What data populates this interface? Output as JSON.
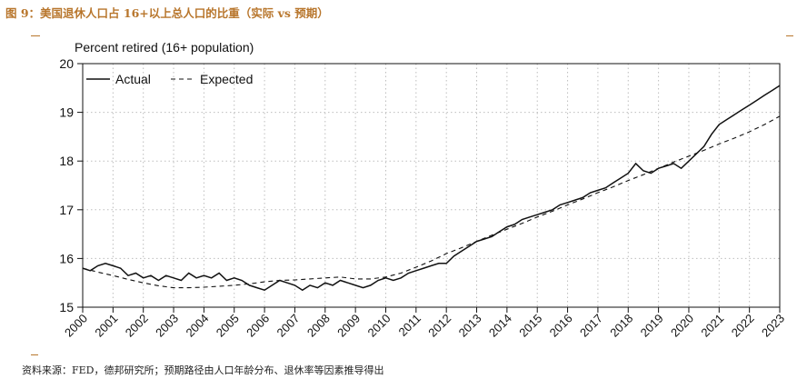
{
  "figure_title": "图 9：美国退休人口占 16+以上总人口的比重（实际 vs 预期）",
  "source": "资料来源：FED，德邦研究所；预期路径由人口年龄分布、退休率等因素推导得出",
  "colors": {
    "title": "#b8762c",
    "line": "#111111",
    "grid": "#bdbdbd"
  },
  "chart_data": {
    "type": "line",
    "title": "Percent retired (16+ population)",
    "xlabel": "",
    "ylabel": "",
    "xlim": [
      2000,
      2023
    ],
    "ylim": [
      15,
      20
    ],
    "yticks": [
      15,
      16,
      17,
      18,
      19,
      20
    ],
    "xticks": [
      "2000",
      "2001",
      "2002",
      "2003",
      "2004",
      "2005",
      "2006",
      "2007",
      "2008",
      "2009",
      "2010",
      "2011",
      "2012",
      "2013",
      "2014",
      "2015",
      "2016",
      "2017",
      "2018",
      "2019",
      "2020",
      "2021",
      "2022",
      "2023"
    ],
    "grid": true,
    "legend_position": "top-left",
    "series": [
      {
        "name": "Actual",
        "style": "solid",
        "x": [
          2000.0,
          2000.25,
          2000.5,
          2000.75,
          2001.0,
          2001.25,
          2001.5,
          2001.75,
          2002.0,
          2002.25,
          2002.5,
          2002.75,
          2003.0,
          2003.25,
          2003.5,
          2003.75,
          2004.0,
          2004.25,
          2004.5,
          2004.75,
          2005.0,
          2005.25,
          2005.5,
          2005.75,
          2006.0,
          2006.25,
          2006.5,
          2006.75,
          2007.0,
          2007.25,
          2007.5,
          2007.75,
          2008.0,
          2008.25,
          2008.5,
          2008.75,
          2009.0,
          2009.25,
          2009.5,
          2009.75,
          2010.0,
          2010.25,
          2010.5,
          2010.75,
          2011.0,
          2011.25,
          2011.5,
          2011.75,
          2012.0,
          2012.25,
          2012.5,
          2012.75,
          2013.0,
          2013.25,
          2013.5,
          2013.75,
          2014.0,
          2014.25,
          2014.5,
          2014.75,
          2015.0,
          2015.25,
          2015.5,
          2015.75,
          2016.0,
          2016.25,
          2016.5,
          2016.75,
          2017.0,
          2017.25,
          2017.5,
          2017.75,
          2018.0,
          2018.25,
          2018.5,
          2018.75,
          2019.0,
          2019.25,
          2019.5,
          2019.75,
          2020.0,
          2020.25,
          2020.5,
          2020.75,
          2021.0,
          2021.25,
          2021.5,
          2021.75,
          2022.0,
          2022.25,
          2022.5,
          2022.75,
          2023.0
        ],
        "y": [
          15.8,
          15.75,
          15.85,
          15.9,
          15.85,
          15.8,
          15.65,
          15.7,
          15.6,
          15.65,
          15.55,
          15.65,
          15.6,
          15.55,
          15.7,
          15.6,
          15.65,
          15.6,
          15.7,
          15.55,
          15.6,
          15.55,
          15.45,
          15.4,
          15.35,
          15.45,
          15.55,
          15.5,
          15.45,
          15.35,
          15.45,
          15.4,
          15.5,
          15.45,
          15.55,
          15.5,
          15.45,
          15.4,
          15.45,
          15.55,
          15.6,
          15.55,
          15.6,
          15.7,
          15.75,
          15.8,
          15.85,
          15.9,
          15.9,
          16.05,
          16.15,
          16.25,
          16.35,
          16.4,
          16.45,
          16.55,
          16.65,
          16.7,
          16.8,
          16.85,
          16.9,
          16.95,
          17.0,
          17.1,
          17.15,
          17.2,
          17.25,
          17.35,
          17.4,
          17.45,
          17.55,
          17.65,
          17.75,
          17.95,
          17.8,
          17.75,
          17.85,
          17.9,
          17.95,
          17.85,
          18.0,
          18.15,
          18.3,
          18.55,
          18.75,
          18.85,
          18.95,
          19.05,
          19.15,
          19.25,
          19.35,
          19.45,
          19.55
        ]
      },
      {
        "name": "Expected",
        "style": "dashed",
        "x": [
          2000.0,
          2000.5,
          2001.0,
          2001.5,
          2002.0,
          2002.5,
          2003.0,
          2003.5,
          2004.0,
          2004.5,
          2005.0,
          2005.5,
          2006.0,
          2006.5,
          2007.0,
          2007.5,
          2008.0,
          2008.5,
          2009.0,
          2009.5,
          2010.0,
          2010.5,
          2011.0,
          2011.5,
          2012.0,
          2012.5,
          2013.0,
          2013.5,
          2014.0,
          2014.5,
          2015.0,
          2015.5,
          2016.0,
          2016.5,
          2017.0,
          2017.5,
          2018.0,
          2018.5,
          2019.0,
          2019.5,
          2020.0,
          2020.5,
          2021.0,
          2021.5,
          2022.0,
          2022.5,
          2023.0
        ],
        "y": [
          15.8,
          15.72,
          15.65,
          15.57,
          15.5,
          15.44,
          15.4,
          15.4,
          15.41,
          15.43,
          15.45,
          15.48,
          15.52,
          15.55,
          15.56,
          15.58,
          15.6,
          15.62,
          15.58,
          15.58,
          15.62,
          15.7,
          15.82,
          15.95,
          16.1,
          16.22,
          16.35,
          16.48,
          16.6,
          16.72,
          16.85,
          16.97,
          17.1,
          17.22,
          17.35,
          17.47,
          17.6,
          17.72,
          17.85,
          17.98,
          18.1,
          18.22,
          18.35,
          18.47,
          18.6,
          18.75,
          18.92
        ]
      }
    ]
  }
}
